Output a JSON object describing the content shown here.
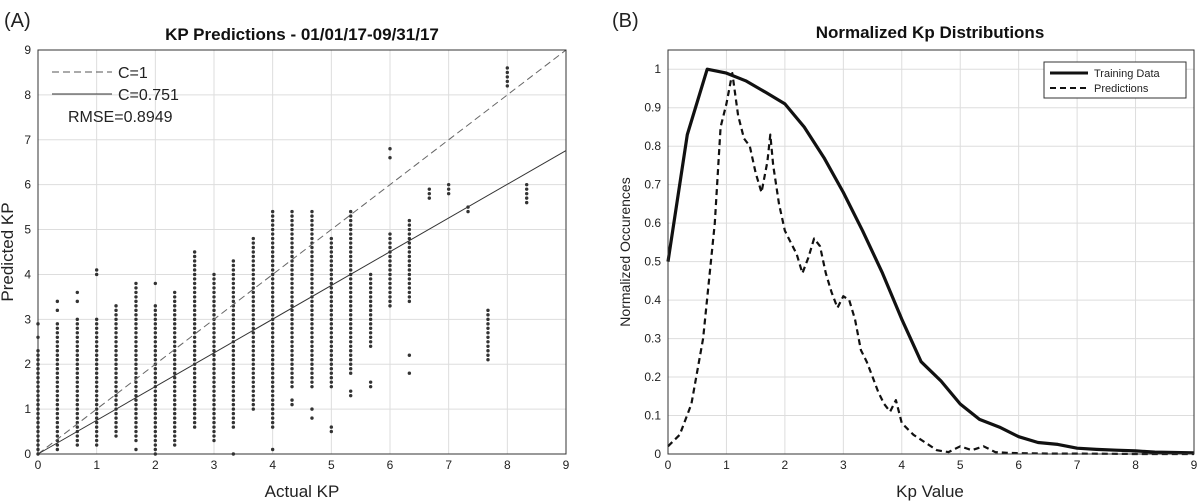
{
  "chart_data": [
    {
      "type": "scatter",
      "panel_label": "(A)",
      "title": "KP Predictions - 01/01/17-09/31/17",
      "xlabel": "Actual KP",
      "ylabel": "Predicted KP",
      "xlim": [
        0,
        9
      ],
      "ylim": [
        0,
        9
      ],
      "xticks": [
        "0",
        "1",
        "2",
        "3",
        "4",
        "5",
        "6",
        "7",
        "8",
        "9"
      ],
      "yticks": [
        "0",
        "1",
        "2",
        "3",
        "4",
        "5",
        "6",
        "7",
        "8",
        "9"
      ],
      "grid": true,
      "legend_position": "top-left",
      "lines": [
        {
          "name": "C=1",
          "slope": 1.0,
          "style": "dashed"
        },
        {
          "name": "C=0.751",
          "slope": 0.751,
          "style": "solid"
        }
      ],
      "annotation": "RMSE=0.8949",
      "columns": [
        {
          "x": 0.0,
          "ymin": 0.0,
          "ymax": 2.3,
          "extra": [
            2.6,
            2.9
          ]
        },
        {
          "x": 0.33,
          "ymin": 0.1,
          "ymax": 2.9,
          "extra": [
            3.2,
            3.4
          ]
        },
        {
          "x": 0.67,
          "ymin": 0.2,
          "ymax": 3.0,
          "extra": [
            3.4,
            3.6
          ]
        },
        {
          "x": 1.0,
          "ymin": 0.2,
          "ymax": 3.0,
          "extra": [
            4.0,
            4.1
          ]
        },
        {
          "x": 1.33,
          "ymin": 0.4,
          "ymax": 3.3,
          "extra": []
        },
        {
          "x": 1.67,
          "ymin": 0.3,
          "ymax": 3.8,
          "extra": [
            0.1
          ]
        },
        {
          "x": 2.0,
          "ymin": 0.0,
          "ymax": 3.3,
          "extra": [
            3.8
          ]
        },
        {
          "x": 2.33,
          "ymin": 0.2,
          "ymax": 3.6,
          "extra": []
        },
        {
          "x": 2.67,
          "ymin": 0.6,
          "ymax": 4.5,
          "extra": []
        },
        {
          "x": 3.0,
          "ymin": 0.4,
          "ymax": 4.0,
          "extra": [
            0.3
          ]
        },
        {
          "x": 3.33,
          "ymin": 0.6,
          "ymax": 4.3,
          "extra": [
            0.0
          ]
        },
        {
          "x": 3.67,
          "ymin": 1.0,
          "ymax": 4.8,
          "extra": []
        },
        {
          "x": 4.0,
          "ymin": 0.6,
          "ymax": 5.4,
          "extra": [
            0.1
          ]
        },
        {
          "x": 4.33,
          "ymin": 1.5,
          "ymax": 5.4,
          "extra": [
            1.1,
            1.2
          ]
        },
        {
          "x": 4.67,
          "ymin": 1.5,
          "ymax": 5.4,
          "extra": [
            1.0,
            0.8
          ]
        },
        {
          "x": 5.0,
          "ymin": 1.5,
          "ymax": 4.8,
          "extra": [
            0.6,
            0.5
          ]
        },
        {
          "x": 5.33,
          "ymin": 1.8,
          "ymax": 5.4,
          "extra": [
            1.3,
            1.4
          ]
        },
        {
          "x": 5.67,
          "ymin": 2.4,
          "ymax": 4.0,
          "extra": [
            1.5,
            1.6
          ]
        },
        {
          "x": 6.0,
          "ymin": 3.3,
          "ymax": 4.9,
          "extra": [
            6.6,
            6.8
          ]
        },
        {
          "x": 6.33,
          "ymin": 3.4,
          "ymax": 5.2,
          "extra": [
            1.8,
            2.2
          ]
        },
        {
          "x": 6.67,
          "ymin": 5.7,
          "ymax": 5.9,
          "extra": []
        },
        {
          "x": 7.0,
          "ymin": 5.8,
          "ymax": 6.0,
          "extra": []
        },
        {
          "x": 7.33,
          "ymin": 5.4,
          "ymax": 5.5,
          "extra": []
        },
        {
          "x": 7.67,
          "ymin": 2.1,
          "ymax": 3.2,
          "extra": []
        },
        {
          "x": 8.0,
          "ymin": 8.2,
          "ymax": 8.6,
          "extra": []
        },
        {
          "x": 8.33,
          "ymin": 5.6,
          "ymax": 6.0,
          "extra": []
        }
      ]
    },
    {
      "type": "line",
      "panel_label": "(B)",
      "title": "Normalized Kp Distributions",
      "xlabel": "Kp Value",
      "ylabel": "Normalized Occurences",
      "xlim": [
        0,
        9
      ],
      "ylim": [
        0,
        1.05
      ],
      "xticks": [
        "0",
        "1",
        "2",
        "3",
        "4",
        "5",
        "6",
        "7",
        "8",
        "9"
      ],
      "yticks": [
        "0",
        "0.1",
        "0.2",
        "0.3",
        "0.4",
        "0.5",
        "0.6",
        "0.7",
        "0.8",
        "0.9",
        "1"
      ],
      "grid": true,
      "legend_position": "top-right",
      "series": [
        {
          "name": "Training Data",
          "style": "solid",
          "x": [
            0,
            0.33,
            0.67,
            1.0,
            1.33,
            1.67,
            2.0,
            2.33,
            2.67,
            3.0,
            3.33,
            3.67,
            4.0,
            4.33,
            4.67,
            5.0,
            5.33,
            5.67,
            6.0,
            6.33,
            6.67,
            7.0,
            7.33,
            7.67,
            8.0,
            8.33,
            8.67,
            9.0
          ],
          "y": [
            0.5,
            0.83,
            1.0,
            0.99,
            0.97,
            0.94,
            0.91,
            0.85,
            0.77,
            0.68,
            0.58,
            0.47,
            0.35,
            0.24,
            0.19,
            0.13,
            0.09,
            0.07,
            0.045,
            0.03,
            0.025,
            0.015,
            0.012,
            0.01,
            0.008,
            0.005,
            0.004,
            0.003
          ]
        },
        {
          "name": "Predictions",
          "style": "dashed",
          "x": [
            0,
            0.2,
            0.4,
            0.6,
            0.8,
            0.9,
            1.0,
            1.1,
            1.2,
            1.3,
            1.4,
            1.5,
            1.6,
            1.7,
            1.75,
            1.8,
            1.9,
            2.0,
            2.1,
            2.2,
            2.3,
            2.4,
            2.5,
            2.6,
            2.7,
            2.8,
            2.9,
            3.0,
            3.1,
            3.2,
            3.3,
            3.4,
            3.5,
            3.6,
            3.7,
            3.8,
            3.9,
            4.0,
            4.2,
            4.4,
            4.6,
            4.8,
            5.0,
            5.2,
            5.4,
            5.6,
            5.8,
            6.0,
            6.5,
            7.0,
            8.0,
            9.0
          ],
          "y": [
            0.02,
            0.05,
            0.13,
            0.3,
            0.6,
            0.85,
            0.91,
            0.99,
            0.88,
            0.82,
            0.8,
            0.73,
            0.68,
            0.76,
            0.83,
            0.75,
            0.65,
            0.58,
            0.55,
            0.52,
            0.47,
            0.51,
            0.56,
            0.54,
            0.47,
            0.42,
            0.38,
            0.41,
            0.4,
            0.35,
            0.27,
            0.24,
            0.2,
            0.16,
            0.13,
            0.11,
            0.14,
            0.08,
            0.05,
            0.03,
            0.01,
            0.005,
            0.02,
            0.01,
            0.02,
            0.005,
            0.003,
            0.002,
            0.001,
            0.001,
            0.0,
            0.0
          ]
        }
      ]
    }
  ]
}
